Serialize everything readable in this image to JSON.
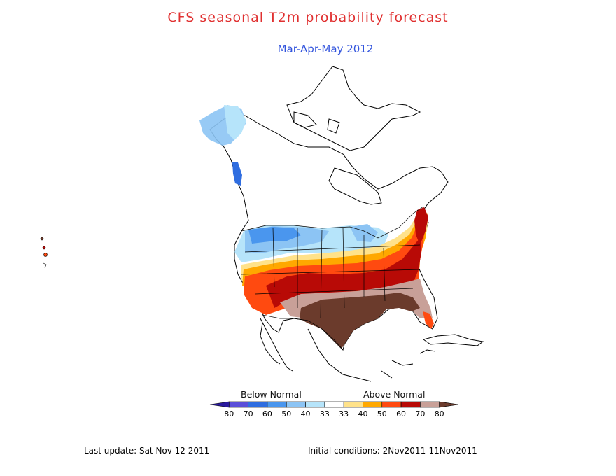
{
  "header": {
    "title": "CFS seasonal T2m probability forecast",
    "subtitle": "Mar-Apr-May 2012"
  },
  "colorbar": {
    "below_label": "Below Normal",
    "above_label": "Above Normal",
    "ticks": [
      "80",
      "70",
      "60",
      "50",
      "40",
      "33",
      "33",
      "40",
      "50",
      "60",
      "70",
      "80"
    ],
    "colors": [
      "#2a1a9e",
      "#5a4ed8",
      "#2f6de0",
      "#4a96ee",
      "#8cc4f4",
      "#b6e4fa",
      "#ffffff",
      "#ffe28a",
      "#ffa800",
      "#ff4a10",
      "#b80a06",
      "#c8a098",
      "#6b3b2c"
    ]
  },
  "map_legend_classes": {
    "below_60": "#2f6de0",
    "below_50": "#4a96ee",
    "below_40": "#8cc4f4",
    "below_33": "#b6e4fa",
    "above_40": "#ffe28a",
    "above_50": "#ffa800",
    "above_60": "#ff4a10",
    "above_70": "#b80a06",
    "above_80_light": "#c8a098",
    "above_80_dark": "#6b3b2c"
  },
  "footer": {
    "last_update": "Last update: Sat Nov 12 2011",
    "initial_conditions": "Initial conditions: 2Nov2011-11Nov2011"
  }
}
